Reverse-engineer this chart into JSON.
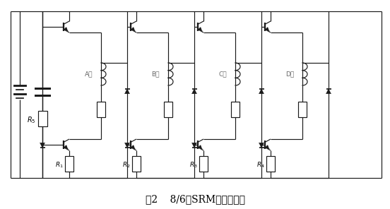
{
  "title": "图2    8/6极SRM电路结构图",
  "phases": [
    "A相",
    "B相",
    "C相",
    "D相"
  ],
  "r_labels": [
    "R_1",
    "R_2",
    "R_3",
    "R_4"
  ],
  "r5_label": "R_5",
  "fig_width": 5.52,
  "fig_height": 2.96,
  "dpi": 100,
  "bg_color": "#ffffff",
  "lc": "#1a1a1a",
  "lw": 0.85
}
